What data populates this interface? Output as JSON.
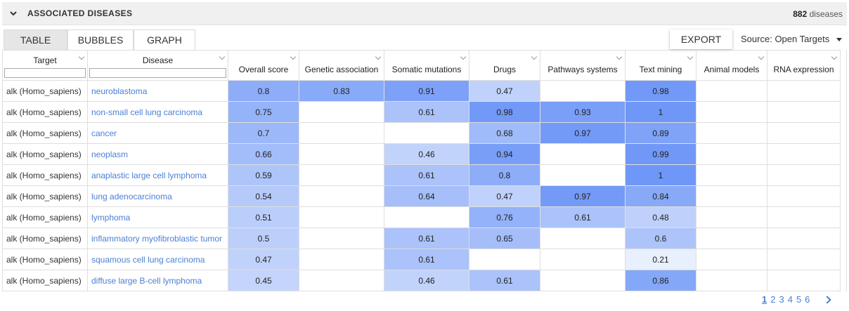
{
  "header": {
    "title": "ASSOCIATED DISEASES",
    "count": "882",
    "count_suffix": "diseases"
  },
  "tabs": [
    {
      "label": "TABLE",
      "active": true
    },
    {
      "label": "BUBBLES",
      "active": false
    },
    {
      "label": "GRAPH",
      "active": false
    }
  ],
  "toolbar": {
    "export_label": "EXPORT",
    "source_label": "Source:",
    "source_value": "Open Targets"
  },
  "columns": {
    "target": "Target",
    "disease": "Disease",
    "overall": "Overall score",
    "genetic": "Genetic association",
    "somatic": "Somatic mutations",
    "drugs": "Drugs",
    "pathways": "Pathways systems",
    "text": "Text mining",
    "animal": "Animal models",
    "rna": "RNA expression"
  },
  "rows": [
    {
      "target": "alk (Homo_sapiens)",
      "disease": "neuroblastoma",
      "overall": "0.8",
      "genetic": "0.83",
      "somatic": "0.91",
      "drugs": "0.47",
      "pathways": "",
      "text": "0.98",
      "animal": "",
      "rna": ""
    },
    {
      "target": "alk (Homo_sapiens)",
      "disease": "non-small cell lung carcinoma",
      "overall": "0.75",
      "genetic": "",
      "somatic": "0.61",
      "drugs": "0.98",
      "pathways": "0.93",
      "text": "1",
      "animal": "",
      "rna": ""
    },
    {
      "target": "alk (Homo_sapiens)",
      "disease": "cancer",
      "overall": "0.7",
      "genetic": "",
      "somatic": "",
      "drugs": "0.68",
      "pathways": "0.97",
      "text": "0.89",
      "animal": "",
      "rna": ""
    },
    {
      "target": "alk (Homo_sapiens)",
      "disease": "neoplasm",
      "overall": "0.66",
      "genetic": "",
      "somatic": "0.46",
      "drugs": "0.94",
      "pathways": "",
      "text": "0.99",
      "animal": "",
      "rna": ""
    },
    {
      "target": "alk (Homo_sapiens)",
      "disease": "anaplastic large cell lymphoma",
      "overall": "0.59",
      "genetic": "",
      "somatic": "0.61",
      "drugs": "0.8",
      "pathways": "",
      "text": "1",
      "animal": "",
      "rna": ""
    },
    {
      "target": "alk (Homo_sapiens)",
      "disease": "lung adenocarcinoma",
      "overall": "0.54",
      "genetic": "",
      "somatic": "0.64",
      "drugs": "0.47",
      "pathways": "0.97",
      "text": "0.84",
      "animal": "",
      "rna": ""
    },
    {
      "target": "alk (Homo_sapiens)",
      "disease": "lymphoma",
      "overall": "0.51",
      "genetic": "",
      "somatic": "",
      "drugs": "0.76",
      "pathways": "0.61",
      "text": "0.48",
      "animal": "",
      "rna": ""
    },
    {
      "target": "alk (Homo_sapiens)",
      "disease": "inflammatory myofibroblastic tumor",
      "overall": "0.5",
      "genetic": "",
      "somatic": "0.61",
      "drugs": "0.65",
      "pathways": "",
      "text": "0.6",
      "animal": "",
      "rna": ""
    },
    {
      "target": "alk (Homo_sapiens)",
      "disease": "squamous cell lung carcinoma",
      "overall": "0.47",
      "genetic": "",
      "somatic": "0.61",
      "drugs": "",
      "pathways": "",
      "text": "0.21",
      "animal": "",
      "rna": ""
    },
    {
      "target": "alk (Homo_sapiens)",
      "disease": "diffuse large B-cell lymphoma",
      "overall": "0.45",
      "genetic": "",
      "somatic": "0.46",
      "drugs": "0.61",
      "pathways": "",
      "text": "0.86",
      "animal": "",
      "rna": ""
    }
  ],
  "pagination": {
    "pages": [
      "1",
      "2",
      "3",
      "4",
      "5",
      "6"
    ],
    "current": "1"
  },
  "colors": {
    "accent": "#4a7fd6",
    "heat_low": "#eaf0fd",
    "heat_high": "#6f97f7"
  }
}
